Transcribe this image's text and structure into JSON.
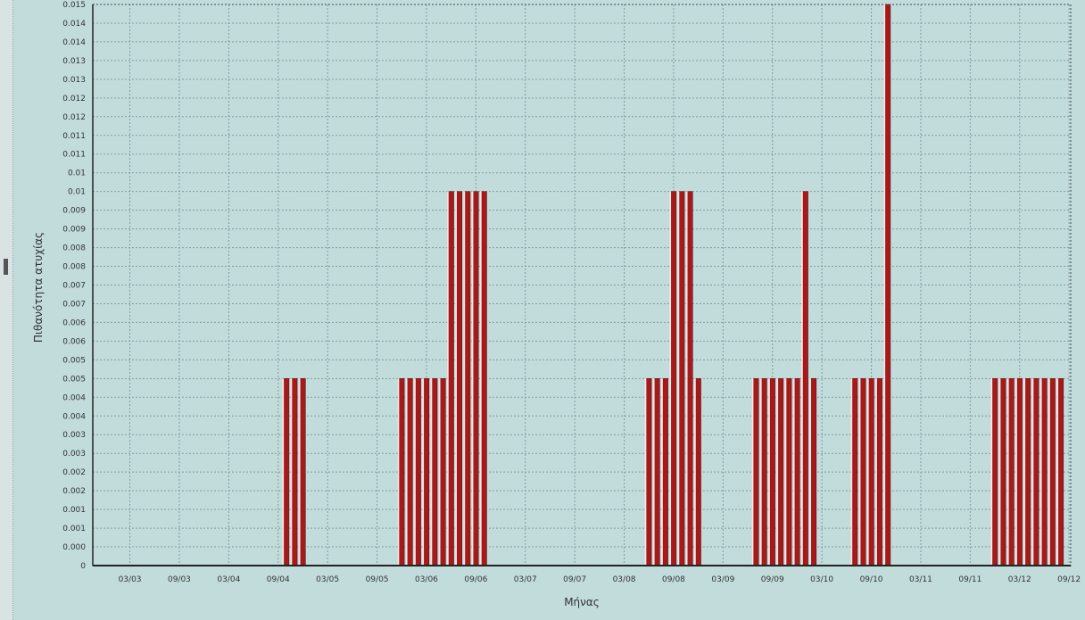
{
  "chart_data": {
    "type": "bar",
    "title": "",
    "xlabel": "Μήνας",
    "ylabel": "Πιθανότητα ατυχίας",
    "ylim": [
      0,
      0.015
    ],
    "grid": true,
    "legend": "none",
    "colors": {
      "plot_background": "#c2dcdc",
      "bar_fill": "#a51a1a",
      "bar_highlight": "#ffe3e3",
      "grid": "#7f9f9f",
      "axis": "#222222",
      "text": "#333333"
    },
    "y_tick_labels": [
      "0",
      "0.000",
      "0.001",
      "0.001",
      "0.002",
      "0.002",
      "0.003",
      "0.003",
      "0.004",
      "0.004",
      "0.005",
      "0.005",
      "0.006",
      "0.006",
      "0.007",
      "0.007",
      "0.008",
      "0.008",
      "0.009",
      "0.009",
      "0.01",
      "0.01",
      "0.011",
      "0.011",
      "0.012",
      "0.012",
      "0.013",
      "0.013",
      "0.014",
      "0.014",
      "0.015"
    ],
    "x_tick_labels": [
      "03/03",
      "09/03",
      "03/04",
      "09/04",
      "03/05",
      "09/05",
      "03/06",
      "09/06",
      "03/07",
      "09/07",
      "03/08",
      "09/08",
      "03/09",
      "09/09",
      "03/10",
      "09/10",
      "03/11",
      "09/11",
      "03/12",
      "09/12"
    ],
    "x_range": [
      -1.5,
      117.2
    ],
    "series": [
      {
        "x": [
          22,
          23,
          24,
          36,
          37,
          38,
          39,
          40,
          41,
          42,
          43,
          44,
          45,
          46,
          66,
          67,
          68,
          69,
          70,
          71,
          72,
          79,
          80,
          81,
          82,
          83,
          84,
          85,
          86,
          91,
          92,
          93,
          94,
          95,
          108,
          109,
          110,
          111,
          112,
          113,
          114,
          115,
          116
        ],
        "values": [
          0.005,
          0.005,
          0.005,
          0.005,
          0.005,
          0.005,
          0.005,
          0.005,
          0.005,
          0.01,
          0.01,
          0.01,
          0.01,
          0.01,
          0.005,
          0.005,
          0.005,
          0.01,
          0.01,
          0.01,
          0.005,
          0.005,
          0.005,
          0.005,
          0.005,
          0.005,
          0.005,
          0.01,
          0.005,
          0.005,
          0.005,
          0.005,
          0.005,
          0.015,
          0.005,
          0.005,
          0.005,
          0.005,
          0.005,
          0.005,
          0.005,
          0.005,
          0.005
        ]
      }
    ]
  }
}
